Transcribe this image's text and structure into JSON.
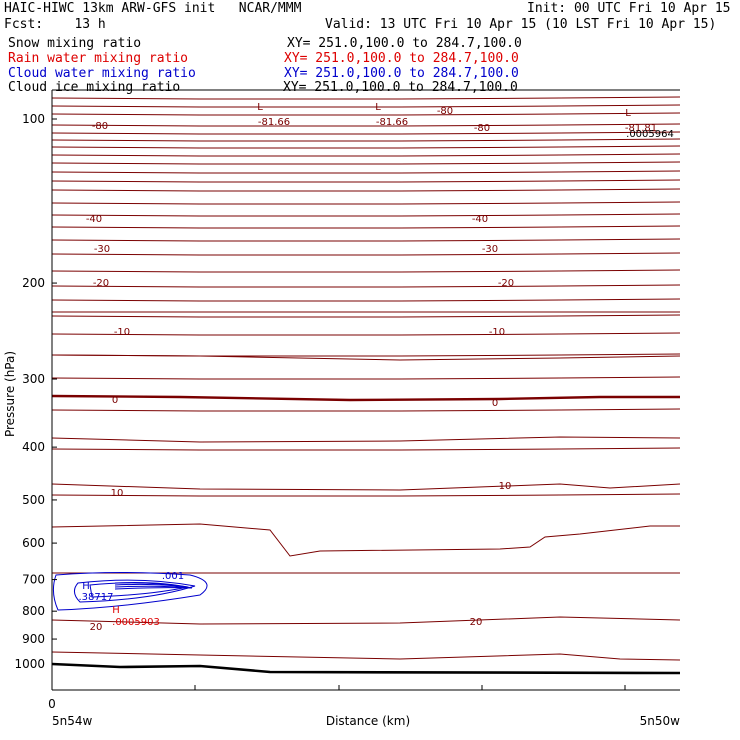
{
  "header": {
    "title": "HAIC-HIWC 13km ARW-GFS init   NCAR/MMM",
    "init": "Init: 00 UTC Fri 10 Apr 15",
    "fcst": "Fcst:    13 h",
    "valid": "Valid: 13 UTC Fri 10 Apr 15 (10 LST Fri 10 Apr 15)",
    "fields": [
      {
        "name": "Snow mixing ratio",
        "xy": "XY= 251.0,100.0 to 284.7,100.0",
        "color": "#000000"
      },
      {
        "name": "Rain water mixing ratio",
        "xy": "XY= 251.0,100.0 to 284.7,100.0",
        "color": "#dd0000"
      },
      {
        "name": "Cloud water mixing ratio",
        "xy": "XY= 251.0,100.0 to 284.7,100.0",
        "color": "#0000cc"
      },
      {
        "name": "Cloud ice mixing ratio",
        "xy": "XY= 251.0,100.0 to 284.7,100.0",
        "color": "#000000"
      }
    ]
  },
  "chart_data": {
    "type": "line",
    "xlabel": "Distance (km)",
    "ylabel": "Pressure (hPa)",
    "x_tick_labels": [
      "0"
    ],
    "x_end_labels": {
      "left": "5n54w",
      "right": "5n50w"
    },
    "y_ticks": [
      100,
      200,
      300,
      400,
      500,
      600,
      700,
      800,
      900,
      1000
    ],
    "y_scale": "log-pressure",
    "ylim": [
      1010,
      75
    ],
    "colors": {
      "temperature": "#7a0000",
      "cloud_water": "#0000cc",
      "rain": "#dd0000",
      "terrain": "#000000"
    },
    "temperature_contour_labels": [
      {
        "value": "-80",
        "pressure": 122
      },
      {
        "value": "-81.66",
        "pressure": 119
      },
      {
        "value": "-81.66",
        "pressure": 119
      },
      {
        "value": "-80",
        "pressure": 122
      },
      {
        "value": "-81.81",
        "pressure": 122
      },
      {
        "value": "-80",
        "pressure": 101
      },
      {
        "value": "-40",
        "pressure": 262
      },
      {
        "value": "-40",
        "pressure": 262
      },
      {
        "value": "-30",
        "pressure": 305
      },
      {
        "value": "-30",
        "pressure": 305
      },
      {
        "value": "-20",
        "pressure": 354
      },
      {
        "value": "-20",
        "pressure": 354
      },
      {
        "value": "-10",
        "pressure": 449
      },
      {
        "value": "-10",
        "pressure": 449
      },
      {
        "value": "0",
        "pressure": 563
      },
      {
        "value": "0",
        "pressure": 565
      },
      {
        "value": "10",
        "pressure": 710
      },
      {
        "value": "10",
        "pressure": 700
      },
      {
        "value": "20",
        "pressure": 932
      },
      {
        "value": "20",
        "pressure": 928
      }
    ],
    "extrema_labels": [
      {
        "type": "L",
        "value": "-81.66"
      },
      {
        "type": "L",
        "value": "-81.66"
      },
      {
        "type": "L",
        "value": ".0005964"
      }
    ],
    "cloud_water": {
      "max_label": "H",
      "max_value": ".38717",
      "contour_label": ".001"
    },
    "rain_water": {
      "max_label": "H",
      "max_value": ".0005903"
    }
  }
}
